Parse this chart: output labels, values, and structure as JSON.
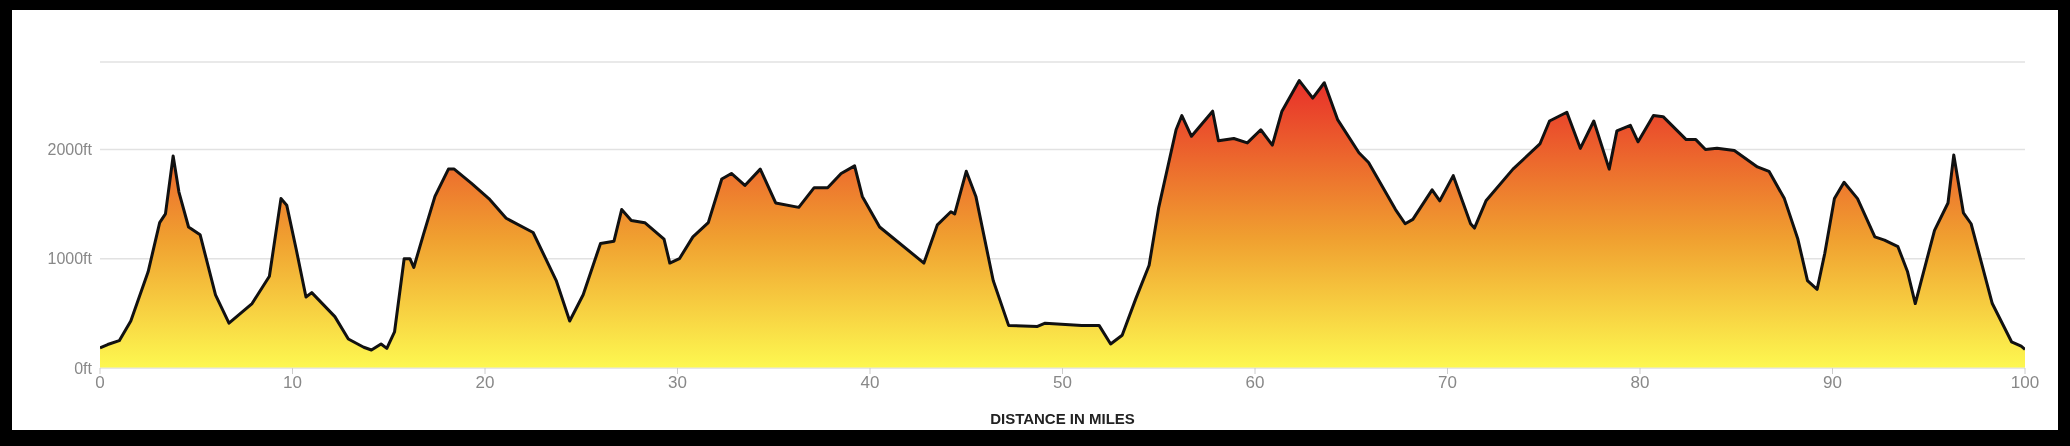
{
  "chart_data": {
    "type": "area",
    "xlabel": "DISTANCE IN MILES",
    "x": [
      0,
      0.4,
      1.0,
      1.6,
      2.5,
      3.1,
      3.4,
      3.8,
      4.1,
      4.6,
      5.2,
      6.0,
      6.7,
      7.9,
      8.8,
      9.4,
      9.7,
      10.2,
      10.7,
      11.0,
      12.2,
      12.9,
      13.7,
      14.1,
      14.6,
      14.9,
      15.3,
      15.8,
      16.1,
      16.3,
      16.8,
      17.4,
      18.1,
      18.4,
      19.3,
      20.2,
      21.1,
      22.5,
      23.7,
      24.4,
      25.1,
      26.0,
      26.7,
      27.1,
      27.6,
      28.3,
      29.3,
      29.6,
      30.1,
      30.8,
      31.6,
      32.3,
      32.8,
      33.5,
      34.3,
      35.1,
      36.3,
      37.1,
      37.8,
      38.5,
      39.2,
      39.6,
      40.5,
      42.8,
      43.5,
      44.2,
      44.4,
      45.0,
      45.5,
      46.4,
      47.2,
      48.7,
      49.1,
      51.0,
      51.9,
      52.5,
      53.1,
      53.8,
      54.5,
      55.0,
      55.9,
      56.2,
      56.7,
      57.8,
      58.1,
      58.9,
      59.6,
      60.3,
      60.9,
      61.4,
      62.3,
      63.0,
      63.6,
      64.3,
      65.4,
      65.9,
      67.3,
      67.8,
      68.2,
      69.2,
      69.6,
      70.3,
      71.2,
      71.4,
      72.0,
      73.4,
      74.8,
      75.3,
      76.2,
      76.9,
      77.6,
      78.4,
      78.8,
      79.5,
      79.9,
      80.7,
      81.2,
      82.4,
      82.9,
      83.4,
      84.0,
      84.9,
      86.1,
      86.7,
      87.5,
      88.2,
      88.7,
      89.2,
      89.6,
      90.1,
      90.6,
      91.3,
      92.2,
      92.7,
      93.4,
      93.9,
      94.3,
      95.3,
      96.0,
      96.3,
      96.8,
      97.2,
      98.3,
      99.3,
      99.8,
      100
    ],
    "series": [
      {
        "color": "#111111",
        "values": [
          184,
          215,
          250,
          430,
          880,
          1330,
          1410,
          1940,
          1610,
          1290,
          1220,
          670,
          410,
          590,
          840,
          1550,
          1490,
          1080,
          650,
          690,
          470,
          265,
          190,
          165,
          220,
          180,
          330,
          1000,
          1000,
          920,
          1220,
          1570,
          1820,
          1820,
          1690,
          1550,
          1370,
          1240,
          800,
          430,
          670,
          1140,
          1160,
          1450,
          1350,
          1330,
          1180,
          960,
          1000,
          1200,
          1330,
          1730,
          1780,
          1670,
          1820,
          1510,
          1470,
          1650,
          1650,
          1780,
          1850,
          1570,
          1290,
          960,
          1310,
          1430,
          1410,
          1800,
          1570,
          800,
          390,
          380,
          410,
          390,
          390,
          220,
          300,
          630,
          940,
          1470,
          2180,
          2310,
          2120,
          2350,
          2080,
          2100,
          2060,
          2180,
          2040,
          2350,
          2630,
          2470,
          2610,
          2270,
          1970,
          1880,
          1450,
          1320,
          1360,
          1630,
          1530,
          1760,
          1320,
          1280,
          1530,
          1820,
          2050,
          2260,
          2340,
          2010,
          2260,
          1820,
          2170,
          2220,
          2070,
          2310,
          2300,
          2090,
          2090,
          2000,
          2010,
          1990,
          1840,
          1800,
          1550,
          1180,
          800,
          720,
          1050,
          1550,
          1700,
          1550,
          1200,
          1170,
          1110,
          880,
          590,
          1260,
          1510,
          1950,
          1420,
          1320,
          590,
          240,
          200,
          170
        ]
      }
    ],
    "xlim": [
      0,
      100
    ],
    "xticks": [
      0,
      10,
      20,
      30,
      40,
      50,
      60,
      70,
      80,
      90,
      100
    ],
    "ylim": [
      0,
      2800
    ],
    "yticks": [
      {
        "value": 0,
        "label": "0ft"
      },
      {
        "value": 1000,
        "label": "1000ft"
      },
      {
        "value": 2000,
        "label": "2000ft"
      }
    ],
    "grid": "y",
    "legend": false,
    "marker": "none",
    "line_style": "solid"
  }
}
